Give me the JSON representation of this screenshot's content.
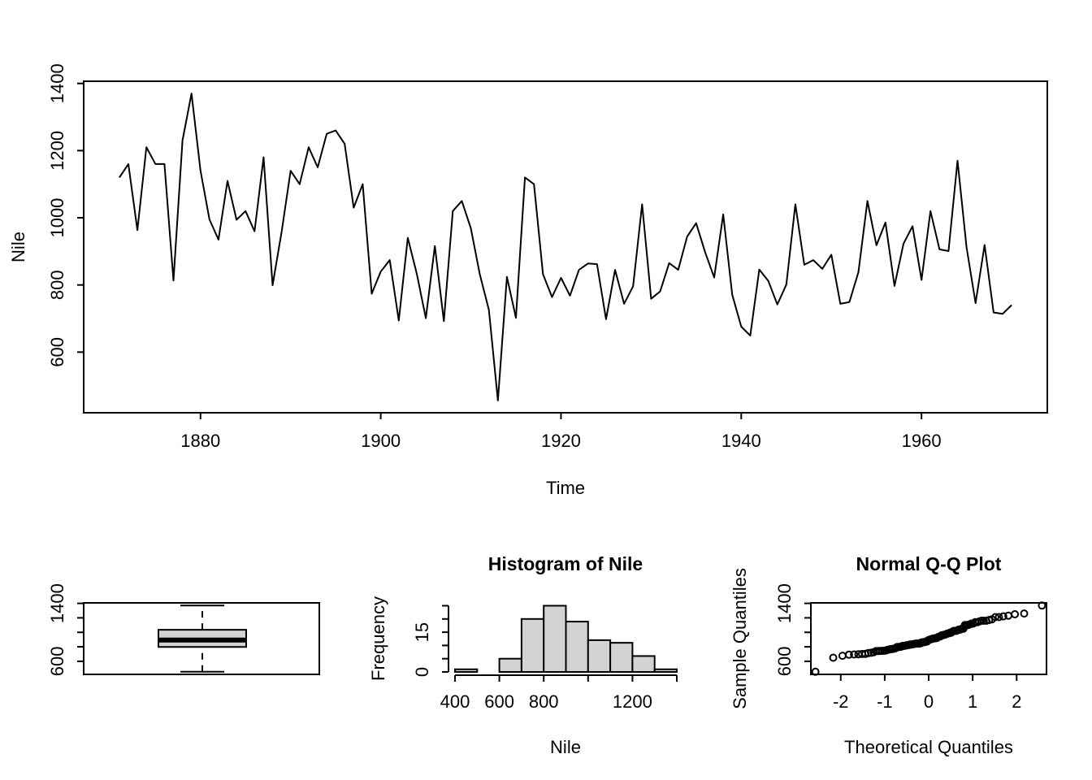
{
  "figure": {
    "background": "#ffffff",
    "foreground": "#000000",
    "fill_gray": "#d3d3d3"
  },
  "chart_data": [
    {
      "id": "nile-timeseries",
      "type": "line",
      "title": "",
      "xlabel": "Time",
      "ylabel": "Nile",
      "x_start": 1871,
      "x_end": 1970,
      "values": [
        1120,
        1160,
        963,
        1210,
        1160,
        1160,
        813,
        1230,
        1370,
        1140,
        995,
        935,
        1110,
        994,
        1020,
        960,
        1180,
        799,
        958,
        1140,
        1100,
        1210,
        1150,
        1250,
        1260,
        1220,
        1030,
        1100,
        774,
        840,
        874,
        694,
        940,
        833,
        701,
        916,
        692,
        1020,
        1050,
        969,
        831,
        726,
        456,
        824,
        702,
        1120,
        1100,
        832,
        764,
        821,
        768,
        845,
        864,
        862,
        698,
        845,
        744,
        796,
        1040,
        759,
        781,
        865,
        845,
        944,
        984,
        897,
        822,
        1010,
        771,
        676,
        649,
        846,
        812,
        742,
        801,
        1040,
        860,
        874,
        848,
        890,
        744,
        749,
        838,
        1050,
        918,
        986,
        797,
        923,
        975,
        815,
        1020,
        906,
        901,
        1170,
        912,
        746,
        919,
        718,
        714,
        740
      ],
      "xticks": [
        1880,
        1900,
        1920,
        1940,
        1960
      ],
      "yticks": [
        600,
        800,
        1000,
        1200,
        1400
      ],
      "xlim": [
        1867.04,
        1973.96
      ],
      "ylim": [
        419.44,
        1406.56
      ],
      "grid": false,
      "legend": null
    },
    {
      "id": "nile-boxplot",
      "type": "boxplot",
      "orientation": "vertical",
      "stats": {
        "min": 456,
        "q1": 798,
        "median": 893.5,
        "q3": 1035,
        "max": 1370
      },
      "outliers": [],
      "yticks": [
        600,
        800,
        1000,
        1200,
        1400
      ],
      "ytick_labels_shown": [
        600,
        1400
      ],
      "ylim": [
        419.44,
        1406.56
      ]
    },
    {
      "id": "nile-histogram",
      "type": "histogram",
      "title": "Histogram of Nile",
      "xlabel": "Nile",
      "ylabel": "Frequency",
      "breaks": [
        400,
        500,
        600,
        700,
        800,
        900,
        1000,
        1100,
        1200,
        1300,
        1400
      ],
      "counts": [
        1,
        0,
        5,
        20,
        25,
        19,
        12,
        11,
        6,
        1
      ],
      "xticks": [
        400,
        600,
        800,
        1000,
        1200,
        1400
      ],
      "xtick_labels_shown": [
        400,
        600,
        800,
        1200
      ],
      "yticks": [
        0,
        5,
        10,
        15,
        20,
        25
      ],
      "ytick_labels_shown": [
        0,
        15
      ],
      "xlim": [
        400,
        1400
      ],
      "ylim": [
        0,
        25
      ],
      "bar_fill": "#d3d3d3"
    },
    {
      "id": "nile-qqplot",
      "type": "scatter",
      "title": "Normal Q-Q Plot",
      "xlabel": "Theoretical Quantiles",
      "ylabel": "Sample Quantiles",
      "x_method": "qnorm(ppoints(100))",
      "sample_sorted": [
        456,
        649,
        676,
        692,
        694,
        698,
        701,
        702,
        714,
        718,
        726,
        740,
        742,
        744,
        744,
        746,
        749,
        759,
        764,
        768,
        771,
        774,
        781,
        796,
        797,
        799,
        801,
        812,
        813,
        815,
        821,
        822,
        824,
        831,
        832,
        833,
        838,
        840,
        845,
        845,
        845,
        846,
        848,
        860,
        862,
        864,
        865,
        874,
        874,
        890,
        897,
        901,
        906,
        912,
        916,
        918,
        919,
        923,
        935,
        940,
        944,
        958,
        960,
        963,
        969,
        975,
        984,
        986,
        994,
        995,
        1010,
        1020,
        1020,
        1020,
        1030,
        1040,
        1040,
        1050,
        1050,
        1100,
        1100,
        1100,
        1110,
        1120,
        1120,
        1140,
        1140,
        1150,
        1160,
        1160,
        1160,
        1170,
        1180,
        1210,
        1210,
        1220,
        1230,
        1250,
        1260,
        1370
      ],
      "xticks": [
        -2,
        -1,
        0,
        1,
        2
      ],
      "yticks": [
        600,
        800,
        1000,
        1200,
        1400
      ],
      "ytick_labels_shown": [
        600,
        1400
      ],
      "xlim": [
        -2.679,
        2.679
      ],
      "ylim": [
        419.44,
        1406.56
      ]
    }
  ]
}
